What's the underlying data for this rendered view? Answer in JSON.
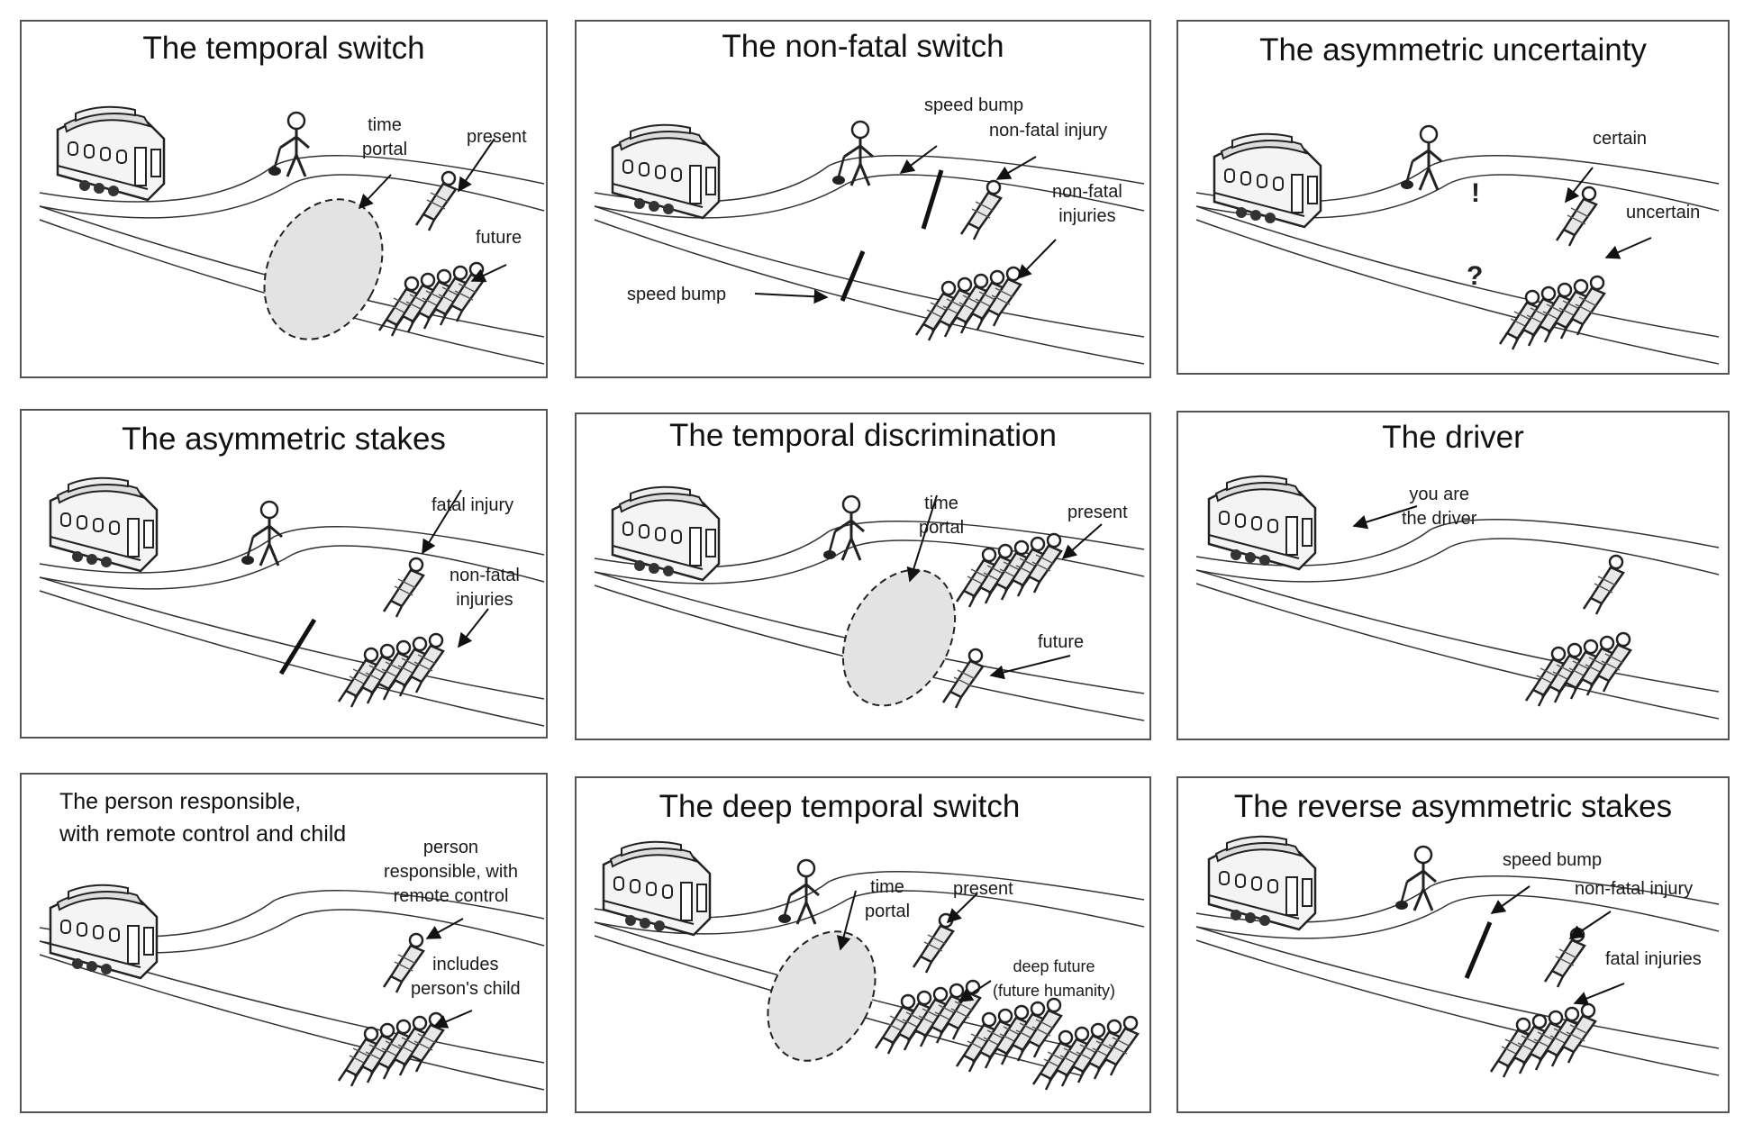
{
  "panels": [
    {
      "title": "The temporal switch",
      "labels": {
        "time_portal": "time\nportal",
        "present": "present",
        "future": "future"
      }
    },
    {
      "title": "The non-fatal switch",
      "labels": {
        "speed_bump_top": "speed bump",
        "non_fatal_injury": "non-fatal injury",
        "non_fatal_injuries": "non-fatal\ninjuries",
        "speed_bump_bottom": "speed bump"
      }
    },
    {
      "title": "The asymmetric uncertainty",
      "labels": {
        "certain": "certain",
        "uncertain": "uncertain",
        "exclamation": "!",
        "question": "?"
      }
    },
    {
      "title": "The asymmetric stakes",
      "labels": {
        "fatal_injury": "fatal injury",
        "non_fatal_injuries": "non-fatal\ninjuries"
      }
    },
    {
      "title": "The temporal discrimination",
      "labels": {
        "time_portal": "time\nportal",
        "present": "present",
        "future": "future"
      }
    },
    {
      "title": "The driver",
      "labels": {
        "you_are_driver": "you are\nthe driver"
      }
    },
    {
      "title": "The person responsible,\nwith remote control and child",
      "labels": {
        "person_responsible": "person\nresponsible, with\nremote control",
        "includes_child": "includes\nperson's child"
      }
    },
    {
      "title": "The deep temporal switch",
      "labels": {
        "time_portal": "time\nportal",
        "present": "present",
        "deep_future": "deep future\n(future humanity)"
      }
    },
    {
      "title": "The reverse asymmetric stakes",
      "labels": {
        "speed_bump": "speed bump",
        "non_fatal_injury": "non-fatal injury",
        "fatal_injuries": "fatal injuries"
      }
    }
  ]
}
